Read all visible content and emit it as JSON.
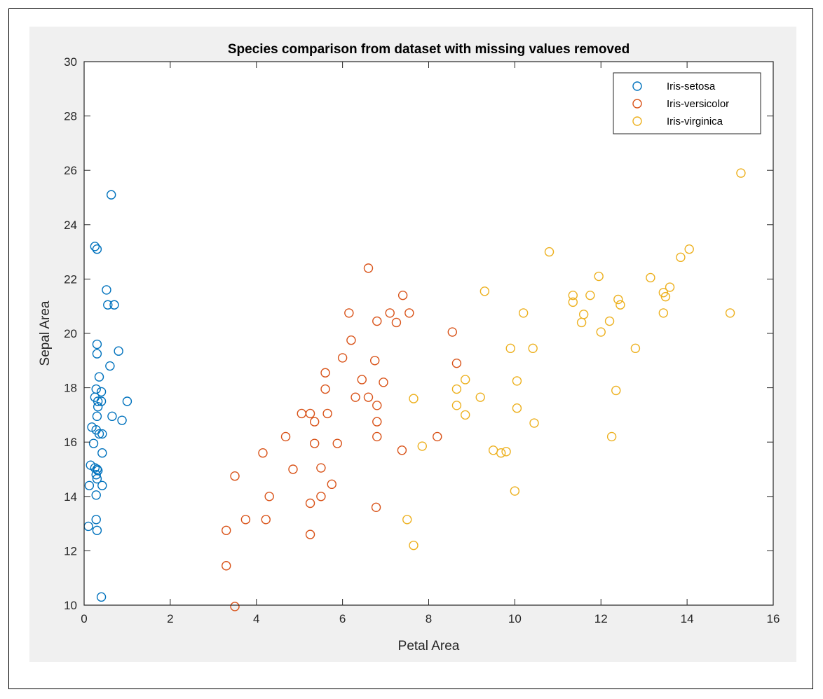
{
  "chart_data": {
    "type": "scatter",
    "title": "Species comparison from dataset with missing values removed",
    "xlabel": "Petal Area",
    "ylabel": "Sepal Area",
    "xlim": [
      0,
      16
    ],
    "ylim": [
      10,
      30
    ],
    "xticks": [
      "0",
      "2",
      "4",
      "6",
      "8",
      "10",
      "12",
      "14",
      "16"
    ],
    "yticks": [
      "10",
      "12",
      "14",
      "16",
      "18",
      "20",
      "22",
      "24",
      "26",
      "28",
      "30"
    ],
    "grid": false,
    "legend_position": "top-right",
    "series": [
      {
        "name": "Iris-setosa",
        "color": "#0072BD",
        "points": [
          [
            0.63,
            25.1
          ],
          [
            0.25,
            23.2
          ],
          [
            0.3,
            23.1
          ],
          [
            0.52,
            21.6
          ],
          [
            0.55,
            21.05
          ],
          [
            0.7,
            21.05
          ],
          [
            0.3,
            19.6
          ],
          [
            0.3,
            19.25
          ],
          [
            0.8,
            19.35
          ],
          [
            0.6,
            18.8
          ],
          [
            0.35,
            18.4
          ],
          [
            0.28,
            17.95
          ],
          [
            0.25,
            17.65
          ],
          [
            0.4,
            17.85
          ],
          [
            0.32,
            17.5
          ],
          [
            0.4,
            17.5
          ],
          [
            0.32,
            17.3
          ],
          [
            1.0,
            17.5
          ],
          [
            0.65,
            16.95
          ],
          [
            0.88,
            16.8
          ],
          [
            0.3,
            16.95
          ],
          [
            0.18,
            16.55
          ],
          [
            0.28,
            16.45
          ],
          [
            0.35,
            16.3
          ],
          [
            0.42,
            16.3
          ],
          [
            0.22,
            15.95
          ],
          [
            0.42,
            15.6
          ],
          [
            0.15,
            15.15
          ],
          [
            0.25,
            15.05
          ],
          [
            0.3,
            15.0
          ],
          [
            0.32,
            14.95
          ],
          [
            0.28,
            14.8
          ],
          [
            0.3,
            14.65
          ],
          [
            0.12,
            14.4
          ],
          [
            0.42,
            14.4
          ],
          [
            0.28,
            14.05
          ],
          [
            0.28,
            13.15
          ],
          [
            0.1,
            12.9
          ],
          [
            0.3,
            12.75
          ],
          [
            0.4,
            10.3
          ]
        ]
      },
      {
        "name": "Iris-versicolor",
        "color": "#D95319",
        "points": [
          [
            6.6,
            22.4
          ],
          [
            7.4,
            21.4
          ],
          [
            6.15,
            20.75
          ],
          [
            7.1,
            20.75
          ],
          [
            7.55,
            20.75
          ],
          [
            6.8,
            20.45
          ],
          [
            7.25,
            20.4
          ],
          [
            8.55,
            20.05
          ],
          [
            6.2,
            19.75
          ],
          [
            6.0,
            19.1
          ],
          [
            6.75,
            19.0
          ],
          [
            8.65,
            18.9
          ],
          [
            5.6,
            18.55
          ],
          [
            6.45,
            18.3
          ],
          [
            6.95,
            18.2
          ],
          [
            5.6,
            17.95
          ],
          [
            6.3,
            17.65
          ],
          [
            6.6,
            17.65
          ],
          [
            6.8,
            17.35
          ],
          [
            5.05,
            17.05
          ],
          [
            5.25,
            17.05
          ],
          [
            5.65,
            17.05
          ],
          [
            5.35,
            16.75
          ],
          [
            6.8,
            16.75
          ],
          [
            4.68,
            16.2
          ],
          [
            6.8,
            16.2
          ],
          [
            8.2,
            16.2
          ],
          [
            5.35,
            15.95
          ],
          [
            5.88,
            15.95
          ],
          [
            7.38,
            15.7
          ],
          [
            4.15,
            15.6
          ],
          [
            5.5,
            15.05
          ],
          [
            4.85,
            15.0
          ],
          [
            3.5,
            14.75
          ],
          [
            5.75,
            14.45
          ],
          [
            4.3,
            14.0
          ],
          [
            5.5,
            14.0
          ],
          [
            5.25,
            13.75
          ],
          [
            6.78,
            13.6
          ],
          [
            3.75,
            13.15
          ],
          [
            4.22,
            13.15
          ],
          [
            3.3,
            12.75
          ],
          [
            5.25,
            12.6
          ],
          [
            3.3,
            11.45
          ],
          [
            3.5,
            9.95
          ]
        ]
      },
      {
        "name": "Iris-virginica",
        "color": "#EDB120",
        "points": [
          [
            15.25,
            25.9
          ],
          [
            10.8,
            23.0
          ],
          [
            14.05,
            23.1
          ],
          [
            13.85,
            22.8
          ],
          [
            11.95,
            22.1
          ],
          [
            13.15,
            22.05
          ],
          [
            13.6,
            21.7
          ],
          [
            13.45,
            21.5
          ],
          [
            13.5,
            21.35
          ],
          [
            9.3,
            21.55
          ],
          [
            11.35,
            21.4
          ],
          [
            11.35,
            21.15
          ],
          [
            11.75,
            21.4
          ],
          [
            12.4,
            21.25
          ],
          [
            12.45,
            21.05
          ],
          [
            10.2,
            20.75
          ],
          [
            11.6,
            20.7
          ],
          [
            13.45,
            20.75
          ],
          [
            15.0,
            20.75
          ],
          [
            11.55,
            20.4
          ],
          [
            12.2,
            20.45
          ],
          [
            12.0,
            20.05
          ],
          [
            9.9,
            19.45
          ],
          [
            10.42,
            19.45
          ],
          [
            12.8,
            19.45
          ],
          [
            8.85,
            18.3
          ],
          [
            10.05,
            18.25
          ],
          [
            8.65,
            17.95
          ],
          [
            12.35,
            17.9
          ],
          [
            9.2,
            17.65
          ],
          [
            7.65,
            17.6
          ],
          [
            8.65,
            17.35
          ],
          [
            10.05,
            17.25
          ],
          [
            8.85,
            17.0
          ],
          [
            10.45,
            16.7
          ],
          [
            12.25,
            16.2
          ],
          [
            7.85,
            15.85
          ],
          [
            9.5,
            15.7
          ],
          [
            9.8,
            15.65
          ],
          [
            9.68,
            15.6
          ],
          [
            10.0,
            14.2
          ],
          [
            7.5,
            13.15
          ],
          [
            7.65,
            12.2
          ]
        ]
      }
    ]
  }
}
